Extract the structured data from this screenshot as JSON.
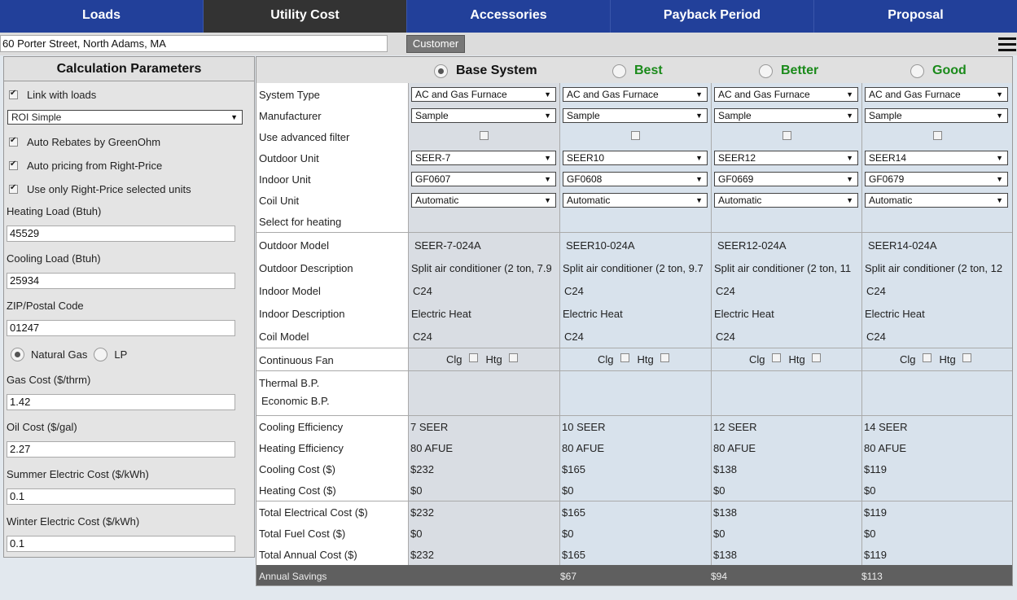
{
  "nav": {
    "tabs": [
      {
        "label": "Loads"
      },
      {
        "label": "Utility Cost"
      },
      {
        "label": "Accessories"
      },
      {
        "label": "Payback Period"
      },
      {
        "label": "Proposal"
      }
    ],
    "active_tab": "Utility Cost"
  },
  "address_bar": {
    "address": "60 Porter Street, North Adams, MA",
    "customer_button": "Customer"
  },
  "left_panel": {
    "title": "Calculation Parameters",
    "link_with_loads": {
      "label": "Link with loads",
      "checked": true
    },
    "roi_method": "ROI Simple",
    "auto_rebates": {
      "label": "Auto Rebates by GreenOhm",
      "checked": true
    },
    "auto_pricing": {
      "label": "Auto pricing from Right-Price",
      "checked": true
    },
    "use_right_price": {
      "label": "Use only Right-Price selected units",
      "checked": true
    },
    "heating_load": {
      "label": "Heating Load (Btuh)",
      "value": "45529"
    },
    "cooling_load": {
      "label": "Cooling Load (Btuh)",
      "value": "25934"
    },
    "zip": {
      "label": "ZIP/Postal Code",
      "value": "01247"
    },
    "fuel": {
      "natural_gas": "Natural Gas",
      "lp": "LP",
      "selected": "natural_gas"
    },
    "gas_cost": {
      "label": "Gas Cost ($/thrm)",
      "value": "1.42"
    },
    "oil_cost": {
      "label": "Oil Cost ($/gal)",
      "value": "2.27"
    },
    "summer_electric": {
      "label": "Summer Electric Cost ($/kWh)",
      "value": "0.1"
    },
    "winter_electric": {
      "label": "Winter Electric Cost ($/kWh)",
      "value": "0.1"
    }
  },
  "systems": {
    "headers": [
      "Base System",
      "Best",
      "Better",
      "Good"
    ],
    "selected": "Base System",
    "row_labels": {
      "system_type": "System Type",
      "manufacturer": "Manufacturer",
      "advanced_filter": "Use advanced filter",
      "outdoor_unit": "Outdoor Unit",
      "indoor_unit": "Indoor Unit",
      "coil_unit": "Coil Unit",
      "select_heating": "Select for heating",
      "outdoor_model": "Outdoor Model",
      "outdoor_description": "Outdoor Description",
      "indoor_model": "Indoor Model",
      "indoor_description": "Indoor Description",
      "coil_model": "Coil Model",
      "continuous_fan": "Continuous Fan",
      "thermal_bp": "Thermal B.P.",
      "economic_bp": "Economic B.P.",
      "cooling_efficiency": "Cooling Efficiency",
      "heating_efficiency": "Heating Efficiency",
      "cooling_cost": "Cooling Cost ($)",
      "heating_cost": "Heating Cost ($)",
      "total_electrical": "Total Electrical Cost ($)",
      "total_fuel": "Total Fuel Cost ($)",
      "total_annual": "Total Annual Cost ($)",
      "annual_savings": "Annual Savings"
    },
    "fan_labels": {
      "clg": "Clg",
      "htg": "Htg"
    },
    "columns": [
      {
        "system_type": "AC and Gas Furnace",
        "manufacturer": "Sample",
        "outdoor_unit": "SEER-7",
        "indoor_unit": "GF0607",
        "coil_unit": "Automatic",
        "outdoor_model": "SEER-7-024A",
        "outdoor_description": "Split air conditioner (2 ton, 7.9",
        "indoor_model": "C24",
        "indoor_description": "Electric Heat",
        "coil_model": "C24",
        "cooling_efficiency": "7 SEER",
        "heating_efficiency": "80 AFUE",
        "cooling_cost": "$232",
        "heating_cost": "$0",
        "total_electrical": "$232",
        "total_fuel": "$0",
        "total_annual": "$232",
        "annual_savings": ""
      },
      {
        "system_type": "AC and Gas Furnace",
        "manufacturer": "Sample",
        "outdoor_unit": "SEER10",
        "indoor_unit": "GF0608",
        "coil_unit": "Automatic",
        "outdoor_model": "SEER10-024A",
        "outdoor_description": "Split air conditioner (2 ton, 9.7",
        "indoor_model": "C24",
        "indoor_description": "Electric Heat",
        "coil_model": "C24",
        "cooling_efficiency": "10 SEER",
        "heating_efficiency": "80 AFUE",
        "cooling_cost": "$165",
        "heating_cost": "$0",
        "total_electrical": "$165",
        "total_fuel": "$0",
        "total_annual": "$165",
        "annual_savings": "$67"
      },
      {
        "system_type": "AC and Gas Furnace",
        "manufacturer": "Sample",
        "outdoor_unit": "SEER12",
        "indoor_unit": "GF0669",
        "coil_unit": "Automatic",
        "outdoor_model": "SEER12-024A",
        "outdoor_description": "Split air conditioner (2 ton, 11",
        "indoor_model": "C24",
        "indoor_description": "Electric Heat",
        "coil_model": "C24",
        "cooling_efficiency": "12 SEER",
        "heating_efficiency": "80 AFUE",
        "cooling_cost": "$138",
        "heating_cost": "$0",
        "total_electrical": "$138",
        "total_fuel": "$0",
        "total_annual": "$138",
        "annual_savings": "$94"
      },
      {
        "system_type": "AC and Gas Furnace",
        "manufacturer": "Sample",
        "outdoor_unit": "SEER14",
        "indoor_unit": "GF0679",
        "coil_unit": "Automatic",
        "outdoor_model": "SEER14-024A",
        "outdoor_description": "Split air conditioner (2 ton, 12",
        "indoor_model": "C24",
        "indoor_description": "Electric Heat",
        "coil_model": "C24",
        "cooling_efficiency": "14 SEER",
        "heating_efficiency": "80 AFUE",
        "cooling_cost": "$119",
        "heating_cost": "$0",
        "total_electrical": "$119",
        "total_fuel": "$0",
        "total_annual": "$119",
        "annual_savings": "$113"
      }
    ]
  }
}
